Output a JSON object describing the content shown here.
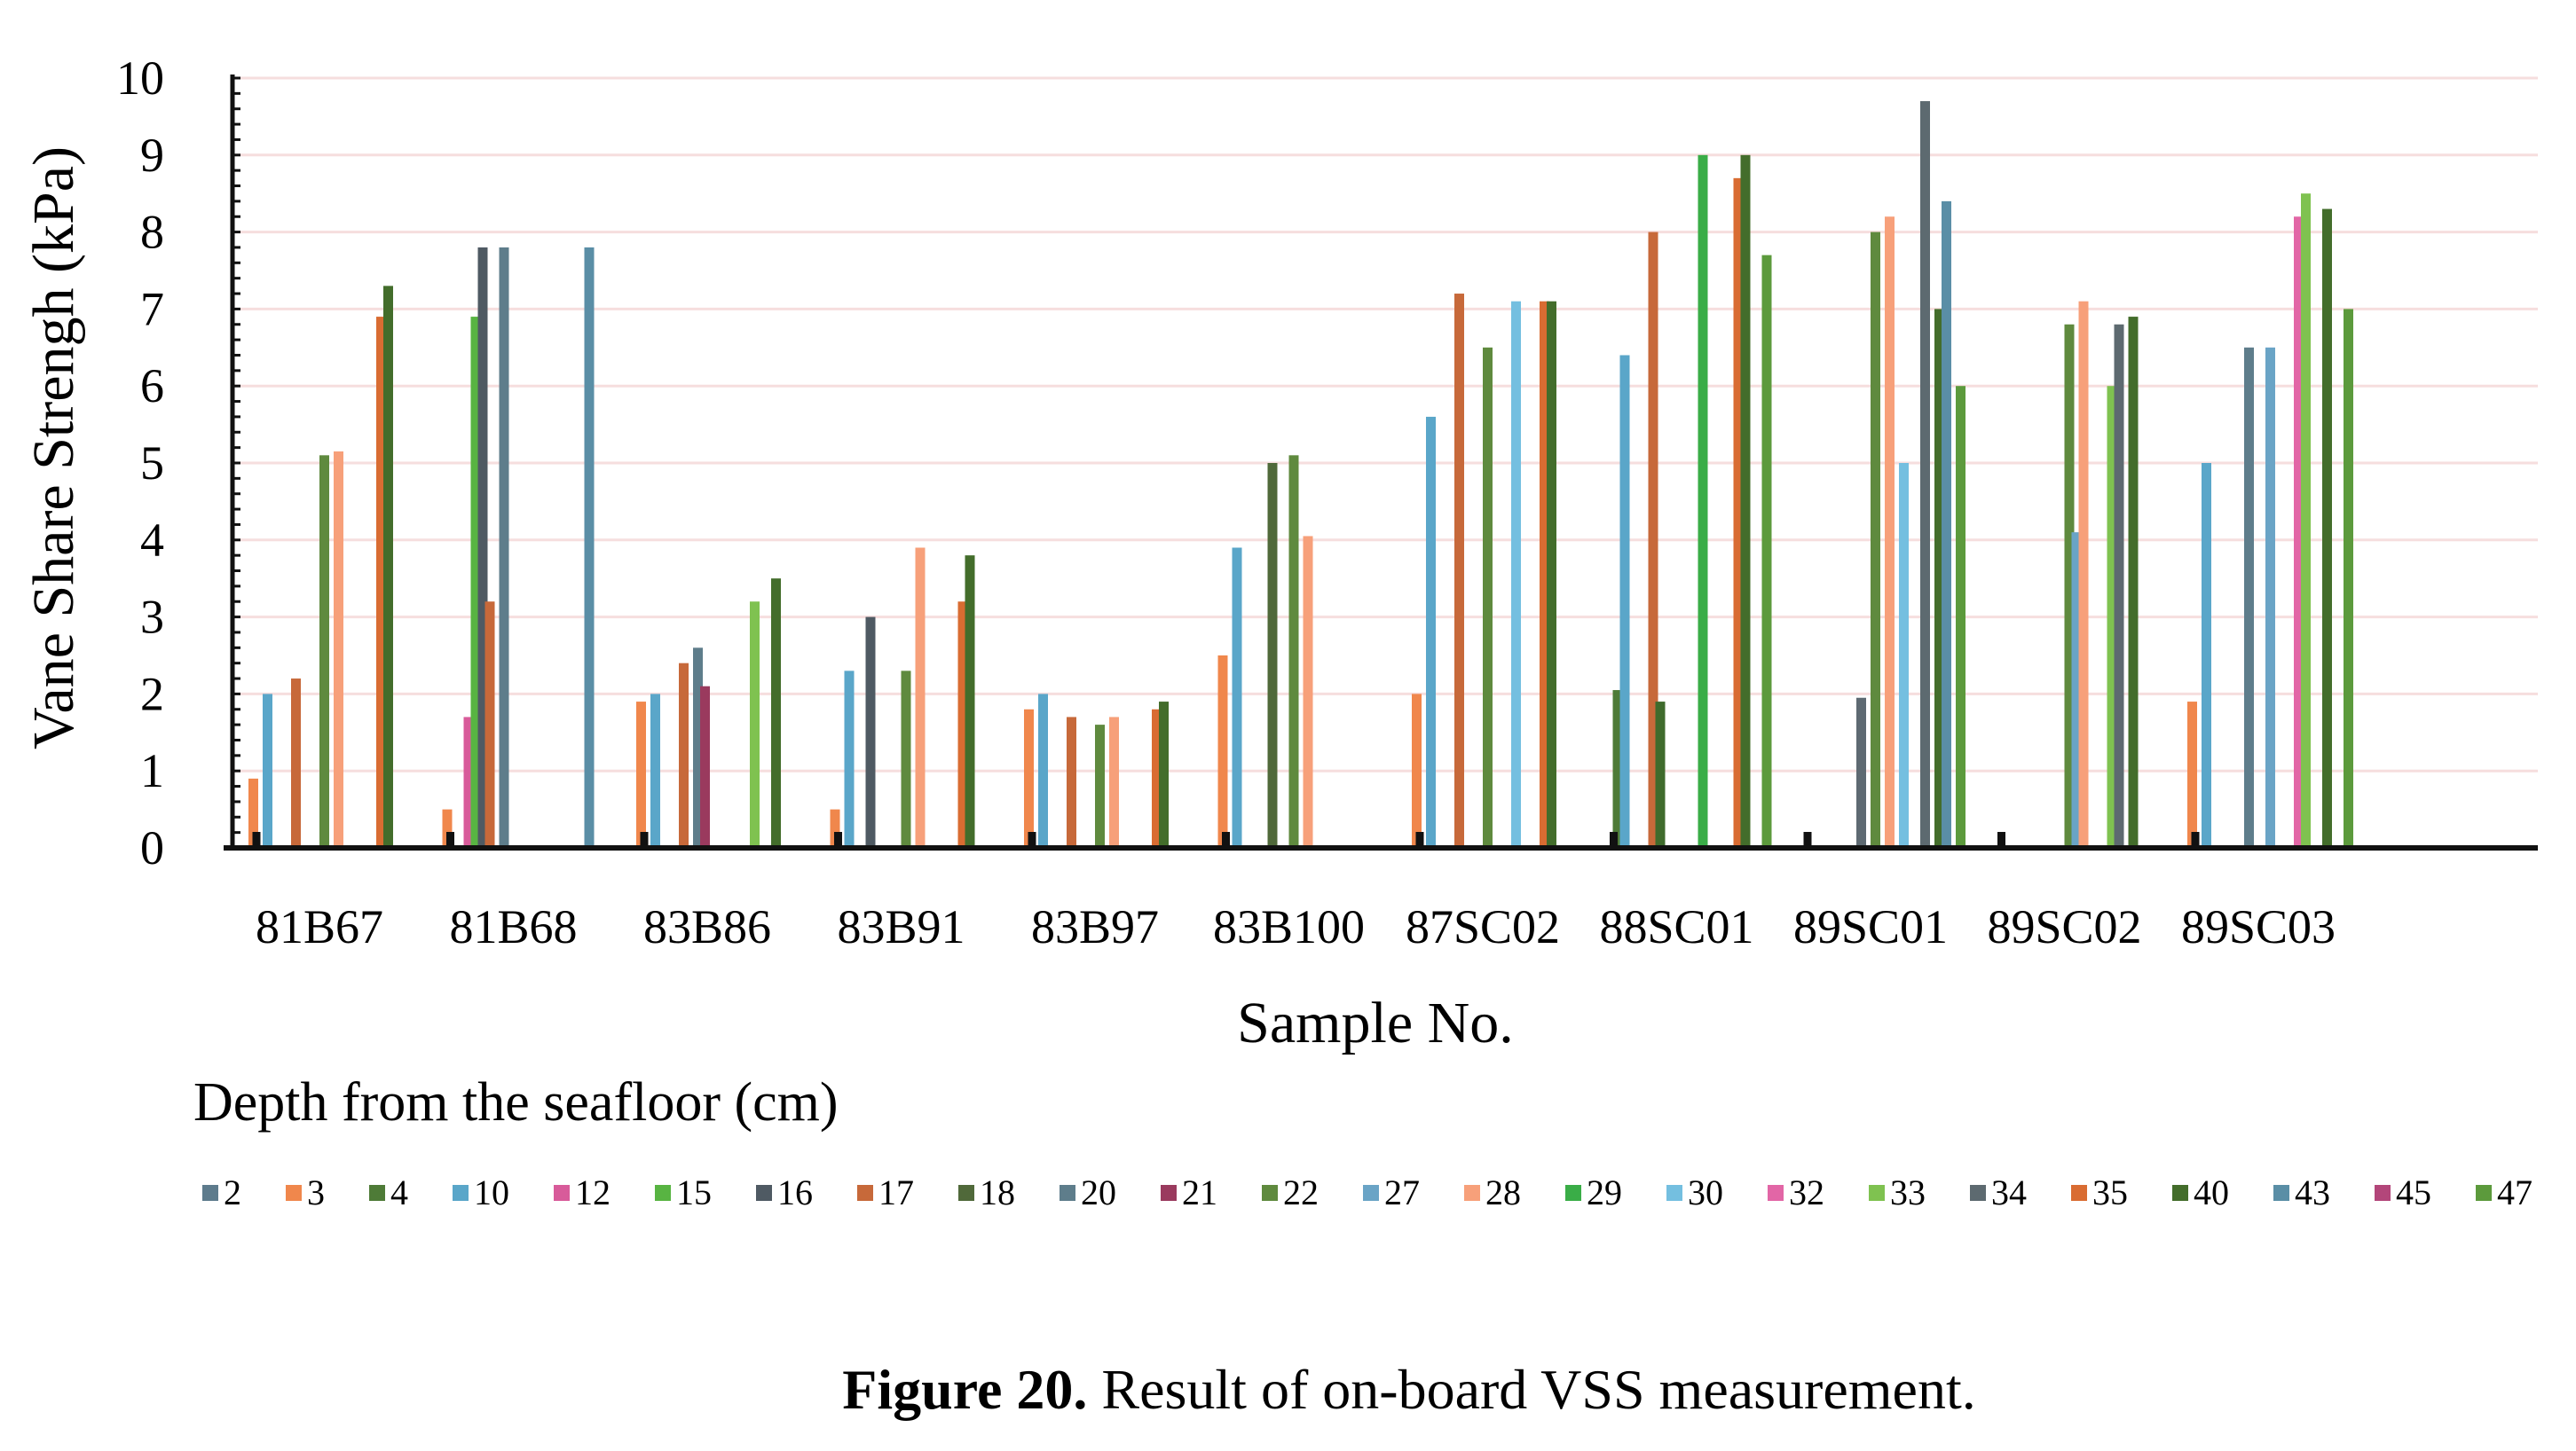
{
  "figure": {
    "caption_label": "Figure 20.",
    "caption_text": " Result of on-board VSS measurement."
  },
  "chart_data": {
    "type": "bar",
    "title": "",
    "xlabel": "Sample No.",
    "ylabel": "Vane Share Strengh (kPa)",
    "ylim": [
      0,
      10
    ],
    "yticks": [
      0,
      1,
      2,
      3,
      4,
      5,
      6,
      7,
      8,
      9,
      10
    ],
    "grid": true,
    "legend_title": "Depth from the seafloor (cm)",
    "legend_placement": "bottom",
    "categories": [
      "81B67",
      "81B68",
      "83B86",
      "83B91",
      "83B97",
      "83B100",
      "87SC02",
      "88SC01",
      "89SC01",
      "89SC02",
      "89SC03"
    ],
    "series": [
      {
        "name": "2",
        "color": "#5d7b8c",
        "values": [
          null,
          null,
          null,
          null,
          null,
          null,
          null,
          null,
          null,
          null,
          null
        ]
      },
      {
        "name": "3",
        "color": "#f0874c",
        "values": [
          0.9,
          0.5,
          1.9,
          0.5,
          1.8,
          2.5,
          2.0,
          null,
          null,
          null,
          1.9
        ]
      },
      {
        "name": "4",
        "color": "#4e7b37",
        "values": [
          null,
          null,
          null,
          null,
          null,
          null,
          null,
          2.05,
          null,
          null,
          null
        ]
      },
      {
        "name": "10",
        "color": "#5aa6c9",
        "values": [
          2.0,
          null,
          2.0,
          2.3,
          2.0,
          3.9,
          5.6,
          6.4,
          null,
          null,
          5.0
        ]
      },
      {
        "name": "12",
        "color": "#d85b9a",
        "values": [
          null,
          1.7,
          null,
          null,
          null,
          null,
          null,
          null,
          null,
          null,
          null
        ]
      },
      {
        "name": "15",
        "color": "#58b442",
        "values": [
          null,
          6.9,
          null,
          null,
          null,
          null,
          null,
          null,
          null,
          null,
          null
        ]
      },
      {
        "name": "16",
        "color": "#4f5a63",
        "values": [
          null,
          7.8,
          null,
          3.0,
          null,
          null,
          null,
          null,
          null,
          null,
          null
        ]
      },
      {
        "name": "17",
        "color": "#c7693a",
        "values": [
          2.2,
          3.2,
          2.4,
          null,
          1.7,
          null,
          7.2,
          8.0,
          null,
          null,
          null
        ]
      },
      {
        "name": "18",
        "color": "#50693a",
        "values": [
          null,
          null,
          null,
          null,
          null,
          5.0,
          null,
          null,
          null,
          null,
          null
        ]
      },
      {
        "name": "20",
        "color": "#5e7d8b",
        "values": [
          null,
          7.8,
          2.6,
          null,
          null,
          null,
          null,
          null,
          null,
          null,
          6.5
        ]
      },
      {
        "name": "21",
        "color": "#9a3a5e",
        "values": [
          null,
          null,
          2.1,
          null,
          null,
          null,
          null,
          null,
          null,
          null,
          null
        ]
      },
      {
        "name": "22",
        "color": "#5f8a3e",
        "values": [
          5.1,
          null,
          null,
          2.3,
          1.6,
          5.1,
          6.5,
          null,
          8.0,
          6.8,
          null
        ]
      },
      {
        "name": "27",
        "color": "#6aa4c6",
        "values": [
          null,
          null,
          null,
          null,
          null,
          null,
          null,
          null,
          null,
          4.1,
          6.5
        ]
      },
      {
        "name": "28",
        "color": "#f7a07a",
        "values": [
          5.15,
          null,
          null,
          3.9,
          1.7,
          4.05,
          null,
          null,
          8.2,
          7.1,
          null
        ]
      },
      {
        "name": "29",
        "color": "#3aad47",
        "values": [
          null,
          null,
          null,
          null,
          null,
          null,
          null,
          9.0,
          null,
          null,
          null
        ]
      },
      {
        "name": "30",
        "color": "#74bfe0",
        "values": [
          null,
          null,
          null,
          null,
          null,
          null,
          7.1,
          null,
          5.0,
          null,
          null
        ]
      },
      {
        "name": "32",
        "color": "#e266a6",
        "values": [
          null,
          null,
          null,
          null,
          null,
          null,
          null,
          null,
          null,
          null,
          8.2
        ]
      },
      {
        "name": "33",
        "color": "#7fc250",
        "values": [
          null,
          null,
          3.2,
          null,
          null,
          null,
          null,
          null,
          null,
          6.0,
          8.5
        ]
      },
      {
        "name": "34",
        "color": "#5d6a70",
        "values": [
          null,
          null,
          null,
          null,
          null,
          null,
          null,
          null,
          9.7,
          6.8,
          null
        ]
      },
      {
        "name": "35",
        "color": "#d96c32",
        "values": [
          6.9,
          null,
          null,
          3.2,
          1.8,
          null,
          7.1,
          8.7,
          null,
          null,
          null
        ]
      },
      {
        "name": "40",
        "color": "#436d2b",
        "values": [
          7.3,
          null,
          3.5,
          3.8,
          1.9,
          null,
          7.1,
          9.0,
          7.0,
          6.9,
          8.3
        ]
      },
      {
        "name": "43",
        "color": "#5a8ea6",
        "values": [
          null,
          7.8,
          null,
          null,
          null,
          null,
          null,
          null,
          8.4,
          null,
          null
        ]
      },
      {
        "name": "45",
        "color": "#b3467a",
        "values": [
          null,
          null,
          null,
          null,
          null,
          null,
          null,
          null,
          null,
          null,
          null
        ]
      },
      {
        "name": "47",
        "color": "#5c9a3c",
        "values": [
          null,
          null,
          null,
          null,
          null,
          null,
          null,
          7.7,
          6.0,
          null,
          7.0
        ]
      }
    ],
    "extra_marks": [
      {
        "category": "88SC01",
        "series": "18",
        "value": 1.9,
        "color": "#3f6b2c"
      },
      {
        "category": "89SC01",
        "series": "20",
        "value": 1.95,
        "color": "#5e6a72"
      }
    ]
  }
}
